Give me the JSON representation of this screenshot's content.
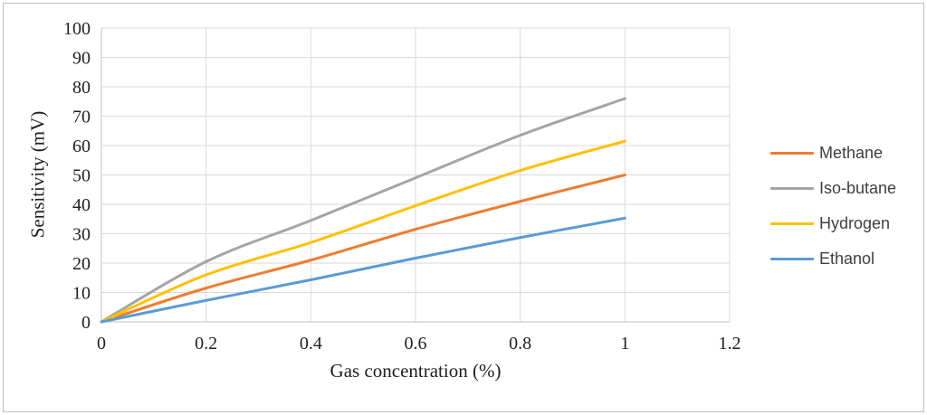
{
  "chart_data": {
    "type": "line",
    "title": "",
    "xlabel": "Gas concentration (%)",
    "ylabel": "Sensitivity (mV)",
    "x": [
      0,
      0.2,
      0.4,
      0.6,
      0.8,
      1.0
    ],
    "series": [
      {
        "name": "Methane",
        "color": "#ED7D31",
        "values": [
          0,
          11.5,
          21.0,
          31.5,
          41.0,
          50.0
        ]
      },
      {
        "name": "Iso-butane",
        "color": "#A5A5A5",
        "values": [
          0,
          20.5,
          34.5,
          49.0,
          63.5,
          76.0
        ]
      },
      {
        "name": "Hydrogen",
        "color": "#FFC000",
        "values": [
          0,
          16.0,
          27.0,
          39.5,
          51.5,
          61.5
        ]
      },
      {
        "name": "Ethanol",
        "color": "#5B9BD5",
        "values": [
          0,
          7.3,
          14.3,
          21.7,
          28.7,
          35.3
        ]
      }
    ],
    "xlim": [
      0,
      1.2
    ],
    "ylim": [
      0,
      100
    ],
    "x_ticks": [
      "0",
      "0.2",
      "0.4",
      "0.6",
      "0.8",
      "1",
      "1.2"
    ],
    "x_tick_values": [
      0,
      0.2,
      0.4,
      0.6,
      0.8,
      1.0,
      1.2
    ],
    "y_ticks": [
      "0",
      "10",
      "20",
      "30",
      "40",
      "50",
      "60",
      "70",
      "80",
      "90",
      "100"
    ],
    "y_tick_values": [
      0,
      10,
      20,
      30,
      40,
      50,
      60,
      70,
      80,
      90,
      100
    ],
    "grid": true,
    "line_style": "smooth",
    "legend_position": "right"
  },
  "colors": {
    "gridline": "#D9D9D9",
    "axis_line": "#BFBFBF",
    "tick_text": "#1F1F1F",
    "legend_text": "#404040",
    "outer_border": "#BFBFBF",
    "background": "#FFFFFF"
  }
}
